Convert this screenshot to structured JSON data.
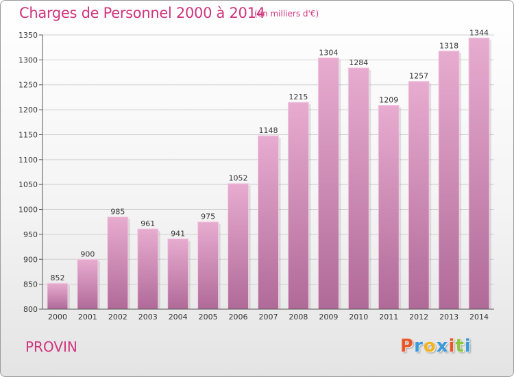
{
  "title": "Charges de Personnel 2000 à 2014",
  "subtitle": "(en milliers d'€)",
  "location": "PROVIN",
  "logo": {
    "text": "Proxiti",
    "letters": [
      "P",
      "r",
      "o",
      "x",
      "i",
      "t",
      "i"
    ],
    "colors": [
      "#e8562a",
      "#3a9ad9",
      "#f2b320",
      "#3a9ad9",
      "#e8562a",
      "#8cc63f",
      "#3a9ad9"
    ]
  },
  "colors": {
    "accent": "#d0347d",
    "bar_top": "#e8acd0",
    "bar_bottom": "#b06a98"
  },
  "chart_data": {
    "type": "bar",
    "title": "Charges de Personnel 2000 à 2014",
    "subtitle": "(en milliers d'€)",
    "categories": [
      "2000",
      "2001",
      "2002",
      "2003",
      "2004",
      "2005",
      "2006",
      "2007",
      "2008",
      "2009",
      "2010",
      "2011",
      "2012",
      "2013",
      "2014"
    ],
    "values": [
      852,
      900,
      985,
      961,
      941,
      975,
      1052,
      1148,
      1215,
      1304,
      1284,
      1209,
      1257,
      1318,
      1344
    ],
    "ylim": [
      800,
      1350
    ],
    "yticks": [
      800,
      850,
      900,
      950,
      1000,
      1050,
      1100,
      1150,
      1200,
      1250,
      1300,
      1350
    ],
    "grid": true,
    "data_labels": true
  }
}
